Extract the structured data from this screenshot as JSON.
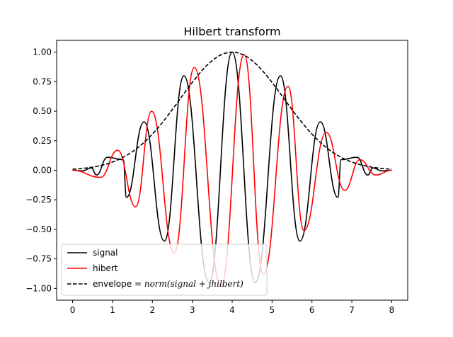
{
  "chart_data": {
    "type": "line",
    "title": "Hilbert transform",
    "xlabel": "",
    "ylabel": "",
    "xlim": [
      -0.4,
      8.4
    ],
    "ylim": [
      -1.1,
      1.1
    ],
    "xticks": [
      0,
      1,
      2,
      3,
      4,
      5,
      6,
      7,
      8
    ],
    "xtick_labels": [
      "0",
      "1",
      "2",
      "3",
      "4",
      "5",
      "6",
      "7",
      "8"
    ],
    "yticks": [
      -1.0,
      -0.75,
      -0.5,
      -0.25,
      0.0,
      0.25,
      0.5,
      0.75,
      1.0
    ],
    "ytick_labels": [
      "−1.00",
      "−0.75",
      "−0.50",
      "−0.25",
      "0.00",
      "0.25",
      "0.50",
      "0.75",
      "1.00"
    ],
    "grid": false,
    "legend_position": "lower-left",
    "series": [
      {
        "name": "signal",
        "color": "#000000",
        "style": "solid"
      },
      {
        "name": "hibert",
        "color": "#ff0000",
        "style": "solid"
      },
      {
        "name": "envelope = ",
        "name_math": "norm(signal + jhilbert)",
        "color": "#000000",
        "style": "dashed"
      }
    ],
    "envelope_shape": "gaussian",
    "envelope_peak": {
      "x": 4.0,
      "y": 1.0
    },
    "signal_peak_x": [
      0.47,
      0.87,
      1.27,
      1.79,
      2.79,
      4.0,
      5.21,
      6.21,
      6.73,
      7.13,
      7.53
    ],
    "signal_peak_y": [
      0.02,
      0.11,
      0.09,
      0.41,
      0.8,
      1.0,
      0.8,
      0.41,
      0.09,
      0.11,
      0.02
    ],
    "signal_trough_x": [
      0.25,
      0.6,
      1.35,
      2.3,
      3.42,
      4.58,
      5.7,
      6.65,
      7.4,
      7.75
    ],
    "signal_trough_y": [
      -0.005,
      -0.04,
      -0.23,
      -0.6,
      -0.95,
      -0.95,
      -0.6,
      -0.23,
      -0.04,
      -0.005
    ],
    "hilbert_peak_x": [
      1.13,
      1.98,
      3.05,
      4.3,
      5.4,
      6.36,
      7.2
    ],
    "hilbert_peak_y": [
      0.17,
      0.5,
      0.87,
      0.98,
      0.71,
      0.32,
      0.09
    ],
    "hilbert_trough_x": [
      0.7,
      1.58,
      2.55,
      3.72,
      4.78,
      5.8,
      6.82,
      7.6
    ],
    "hilbert_trough_y": [
      -0.06,
      -0.31,
      -0.7,
      -0.98,
      -0.88,
      -0.51,
      -0.17,
      -0.04
    ]
  }
}
